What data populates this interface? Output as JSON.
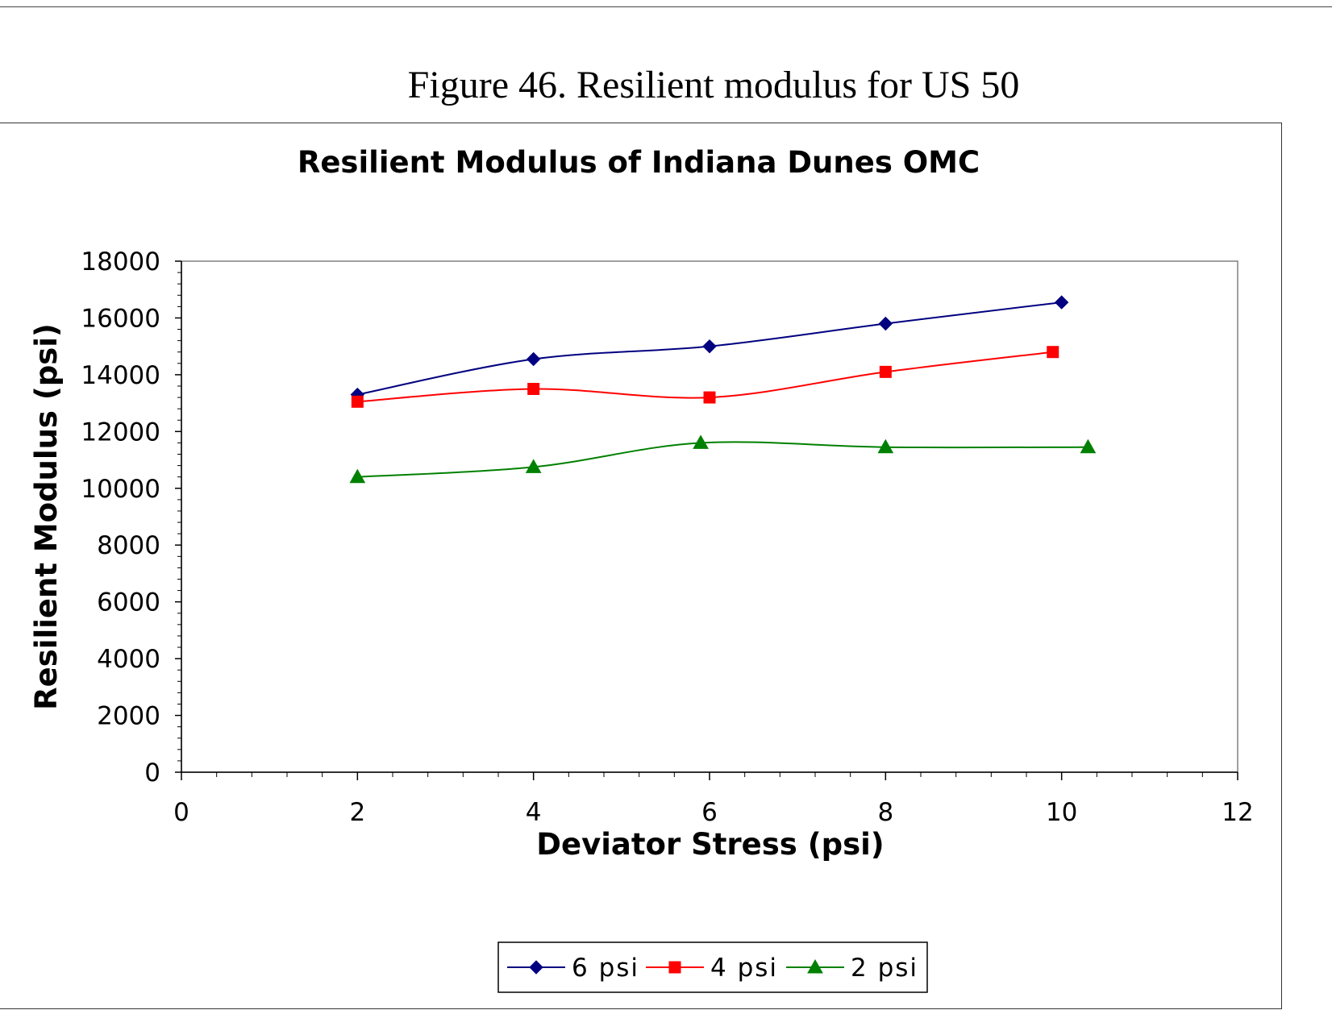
{
  "figure_caption": "Figure 46. Resilient modulus for US 50",
  "chart_data": {
    "type": "line",
    "title": "Resilient Modulus of Indiana Dunes OMC",
    "xlabel": "Deviator Stress (psi)",
    "ylabel": "Resilient Modulus (psi)",
    "xlim": [
      0,
      12
    ],
    "ylim": [
      0,
      18000
    ],
    "x_ticks": [
      0,
      2,
      4,
      6,
      8,
      10,
      12
    ],
    "y_ticks": [
      0,
      2000,
      4000,
      6000,
      8000,
      10000,
      12000,
      14000,
      16000,
      18000
    ],
    "grid": false,
    "legend_position": "bottom",
    "series": [
      {
        "name": "6 psi",
        "color": "#000080",
        "marker": "diamond",
        "points": [
          [
            2.0,
            13300
          ],
          [
            4.0,
            14550
          ],
          [
            6.0,
            15000
          ],
          [
            8.0,
            15800
          ],
          [
            10.0,
            16550
          ]
        ]
      },
      {
        "name": "4 psi",
        "color": "#ff0000",
        "marker": "square",
        "points": [
          [
            2.0,
            13050
          ],
          [
            4.0,
            13500
          ],
          [
            6.0,
            13200
          ],
          [
            8.0,
            14100
          ],
          [
            9.9,
            14800
          ]
        ]
      },
      {
        "name": "2 psi",
        "color": "#008000",
        "marker": "triangle",
        "points": [
          [
            2.0,
            10400
          ],
          [
            4.0,
            10750
          ],
          [
            5.9,
            11600
          ],
          [
            8.0,
            11450
          ],
          [
            10.3,
            11450
          ]
        ]
      }
    ]
  }
}
